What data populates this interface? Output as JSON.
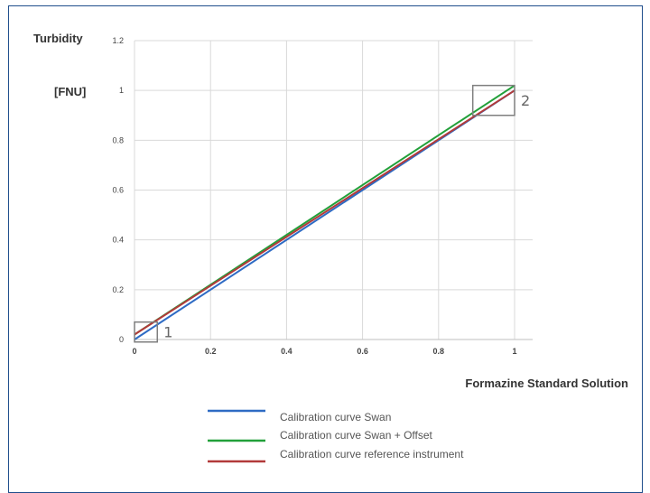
{
  "chart_data": {
    "type": "line",
    "ylabel_line1": "Turbidity",
    "ylabel_line2": "[FNU]",
    "xlabel": "Formazine Standard Solution",
    "xlim": [
      0,
      1
    ],
    "ylim": [
      0,
      1.2
    ],
    "x_ticks": [
      "0",
      "0.2",
      "0.4",
      "0.6",
      "0.8",
      "1"
    ],
    "y_ticks": [
      "0",
      "0.2",
      "0.4",
      "0.6",
      "0.8",
      "1",
      "1.2"
    ],
    "grid": true,
    "legend_position": "bottom-center",
    "series": [
      {
        "name": "Calibration curve Swan",
        "color": "#2e6bc4",
        "x": [
          0,
          1
        ],
        "y": [
          0,
          1
        ]
      },
      {
        "name": "Calibration curve Swan + Offset",
        "color": "#22a03a",
        "x": [
          0,
          1
        ],
        "y": [
          0.02,
          1.02
        ]
      },
      {
        "name": "Calibration curve reference instrument",
        "color": "#b23a3a",
        "x": [
          0,
          1
        ],
        "y": [
          0.02,
          1.0
        ]
      }
    ],
    "annotations": [
      {
        "label": "1",
        "x_range": [
          0,
          0.06
        ],
        "y_range": [
          -0.01,
          0.07
        ]
      },
      {
        "label": "2",
        "x_range": [
          0.89,
          1.0
        ],
        "y_range": [
          0.9,
          1.02
        ]
      }
    ]
  }
}
